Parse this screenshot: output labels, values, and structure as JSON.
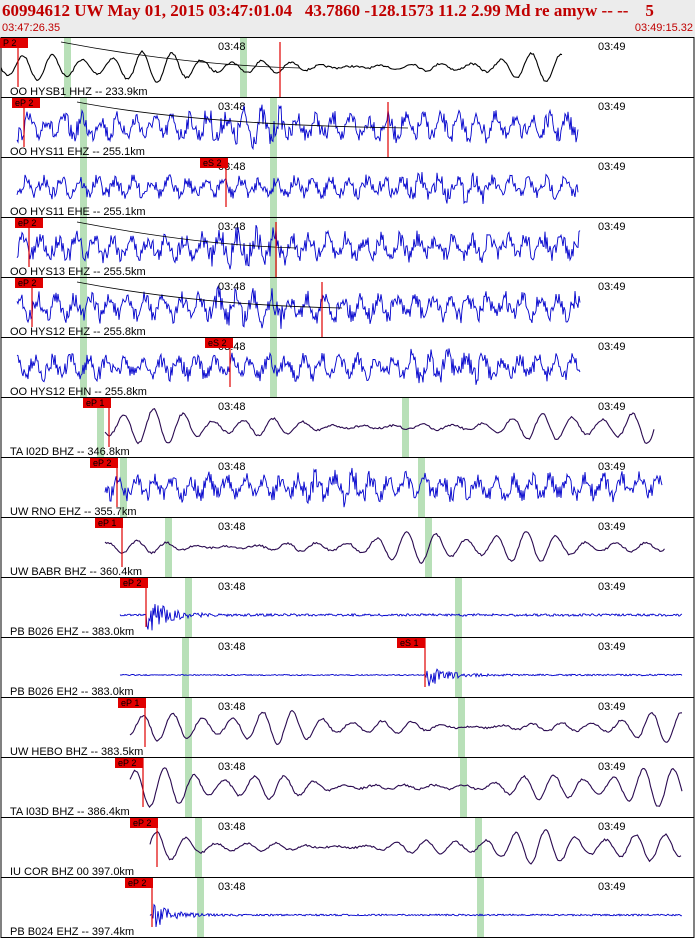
{
  "header": {
    "title": "60994612 UW May 01, 2015 03:47:01.04   43.7860 -128.1573 11.2 2.99 Md re amyw -- --    5",
    "start_time": "03:47:26.35",
    "end_time": "03:49:15.32"
  },
  "colors": {
    "header_text": "#c00000",
    "trace_blue": "#0000cc",
    "trace_purple": "#2a0a50",
    "trace_black": "#000000",
    "pick": "#e00000",
    "window": "#b8e0b8"
  },
  "tick_labels": {
    "t1": "03:48",
    "t2": "03:49"
  },
  "traces": [
    {
      "label": "OO HYSB1 HHZ -- 233.9km",
      "color": "#000000",
      "pick": "P 2",
      "style": "lp"
    },
    {
      "label": "OO HYS11 EHZ -- 255.1km",
      "color": "#0000cc",
      "pick": "eP 2",
      "style": "hf"
    },
    {
      "label": "OO HYS11 EHE -- 255.1km",
      "color": "#0000cc",
      "pick": "eS 2",
      "style": "hf"
    },
    {
      "label": "OO HYS13 EHZ -- 255.5km",
      "color": "#0000cc",
      "pick": "eP 2",
      "style": "hf"
    },
    {
      "label": "OO HYS12 EHZ -- 255.8km",
      "color": "#0000cc",
      "pick": "eP 2",
      "style": "hf"
    },
    {
      "label": "OO HYS12 EHN -- 255.8km",
      "color": "#0000cc",
      "pick": "eS 2",
      "style": "hf"
    },
    {
      "label": "TA I02D BHZ -- 346.8km",
      "color": "#2a0a50",
      "pick": "eP 1",
      "style": "lp"
    },
    {
      "label": "UW RNO EHZ -- 355.7km",
      "color": "#0000cc",
      "pick": "eP 2",
      "style": "hf"
    },
    {
      "label": "UW BABR BHZ -- 360.4km",
      "color": "#2a0a50",
      "pick": "eP 1",
      "style": "lp"
    },
    {
      "label": "PB B026 EHZ -- 383.0km",
      "color": "#0000cc",
      "pick": "eP 2",
      "style": "burst"
    },
    {
      "label": "PB B026 EH2 -- 383.0km",
      "color": "#0000cc",
      "pick": "eS 1",
      "style": "burst"
    },
    {
      "label": "UW HEBO BHZ -- 383.5km",
      "color": "#2a0a50",
      "pick": "eP 1",
      "style": "lp"
    },
    {
      "label": "TA I03D BHZ -- 386.4km",
      "color": "#2a0a50",
      "pick": "eP 2",
      "style": "lp"
    },
    {
      "label": "IU COR BHZ 00 397.0km",
      "color": "#2a0a50",
      "pick": "eP 2",
      "style": "lp"
    },
    {
      "label": "PB B024 EHZ -- 397.4km",
      "color": "#0000cc",
      "pick": "eP 2",
      "style": "burst"
    }
  ]
}
